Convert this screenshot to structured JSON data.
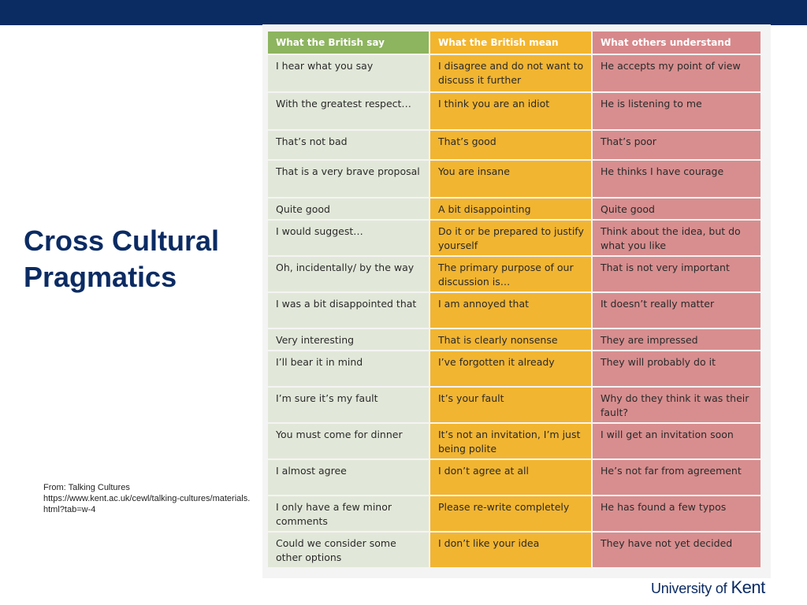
{
  "slide": {
    "title_line1": "Cross Cultural",
    "title_line2": "Pragmatics",
    "source_line1": "From: Talking Cultures",
    "source_line2": "https://www.kent.ac.uk/cewl/talking-cultures/materials.html?tab=w-4",
    "logo_text": "University of",
    "logo_brand": "Kent"
  },
  "table": {
    "headers": [
      "What the British say",
      "What the British mean",
      "What others understand"
    ],
    "rows": [
      [
        "I hear what you say",
        "I disagree and do not want to discuss it further",
        "He accepts my point of view"
      ],
      [
        "With the greatest respect…",
        "I think you are an idiot",
        "He is listening to me"
      ],
      [
        "That’s not bad",
        "That’s good",
        "That’s poor"
      ],
      [
        "That is a very brave proposal",
        "You are insane",
        "He thinks I have courage"
      ],
      [
        "Quite good",
        "A bit disappointing",
        "Quite good"
      ],
      [
        "I would suggest…",
        "Do it or be prepared to justify yourself",
        "Think about the idea, but do what you like"
      ],
      [
        "Oh, incidentally/ by the way",
        "The primary purpose of our discussion is…",
        "That is not very important"
      ],
      [
        "I was a bit disappointed that",
        "I am annoyed that",
        "It doesn’t really matter"
      ],
      [
        "Very interesting",
        "That is clearly nonsense",
        "They are impressed"
      ],
      [
        "I’ll bear it in mind",
        "I’ve forgotten it already",
        "They will probably do it"
      ],
      [
        "I’m sure it’s my fault",
        "It’s your fault",
        "Why do they think it was their fault?"
      ],
      [
        "You must come for dinner",
        "It’s not an invitation, I’m just being polite",
        "I will get an invitation soon"
      ],
      [
        "I almost agree",
        "I don’t agree at all",
        "He’s not far from agreement"
      ],
      [
        "I only have a few minor comments",
        "Please re-write completely",
        "He has found a few typos"
      ],
      [
        "Could we consider some other options",
        "I don’t like your idea",
        "They have not yet decided"
      ]
    ]
  }
}
